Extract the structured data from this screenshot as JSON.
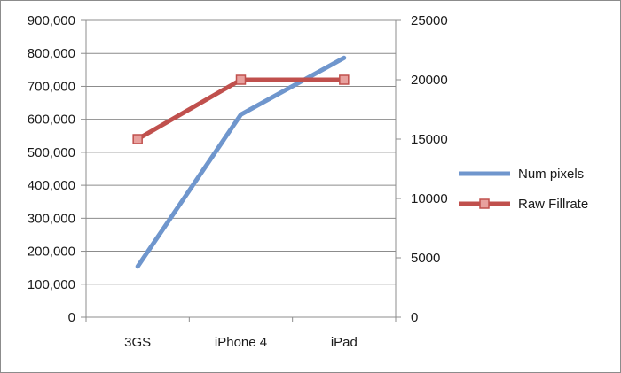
{
  "chart_data": {
    "type": "line",
    "categories": [
      "3GS",
      "iPhone 4",
      "iPad"
    ],
    "series": [
      {
        "name": "Num pixels",
        "axis": "left",
        "values": [
          153600,
          614400,
          786432
        ],
        "color": "#6f96cd",
        "marker": "none"
      },
      {
        "name": "Raw Fillrate",
        "axis": "right",
        "values": [
          15000,
          20000,
          20000
        ],
        "color": "#c0504d",
        "marker": "square",
        "marker_fill": "#e8a19e"
      }
    ],
    "y_left": {
      "min": 0,
      "max": 900000,
      "step": 100000,
      "ticks": [
        "0",
        "100,000",
        "200,000",
        "300,000",
        "400,000",
        "500,000",
        "600,000",
        "700,000",
        "800,000",
        "900,000"
      ]
    },
    "y_right": {
      "min": 0,
      "max": 25000,
      "step": 5000,
      "ticks": [
        "0",
        "5000",
        "10000",
        "15000",
        "20000",
        "25000"
      ]
    },
    "grid": true,
    "legend_position": "right"
  }
}
